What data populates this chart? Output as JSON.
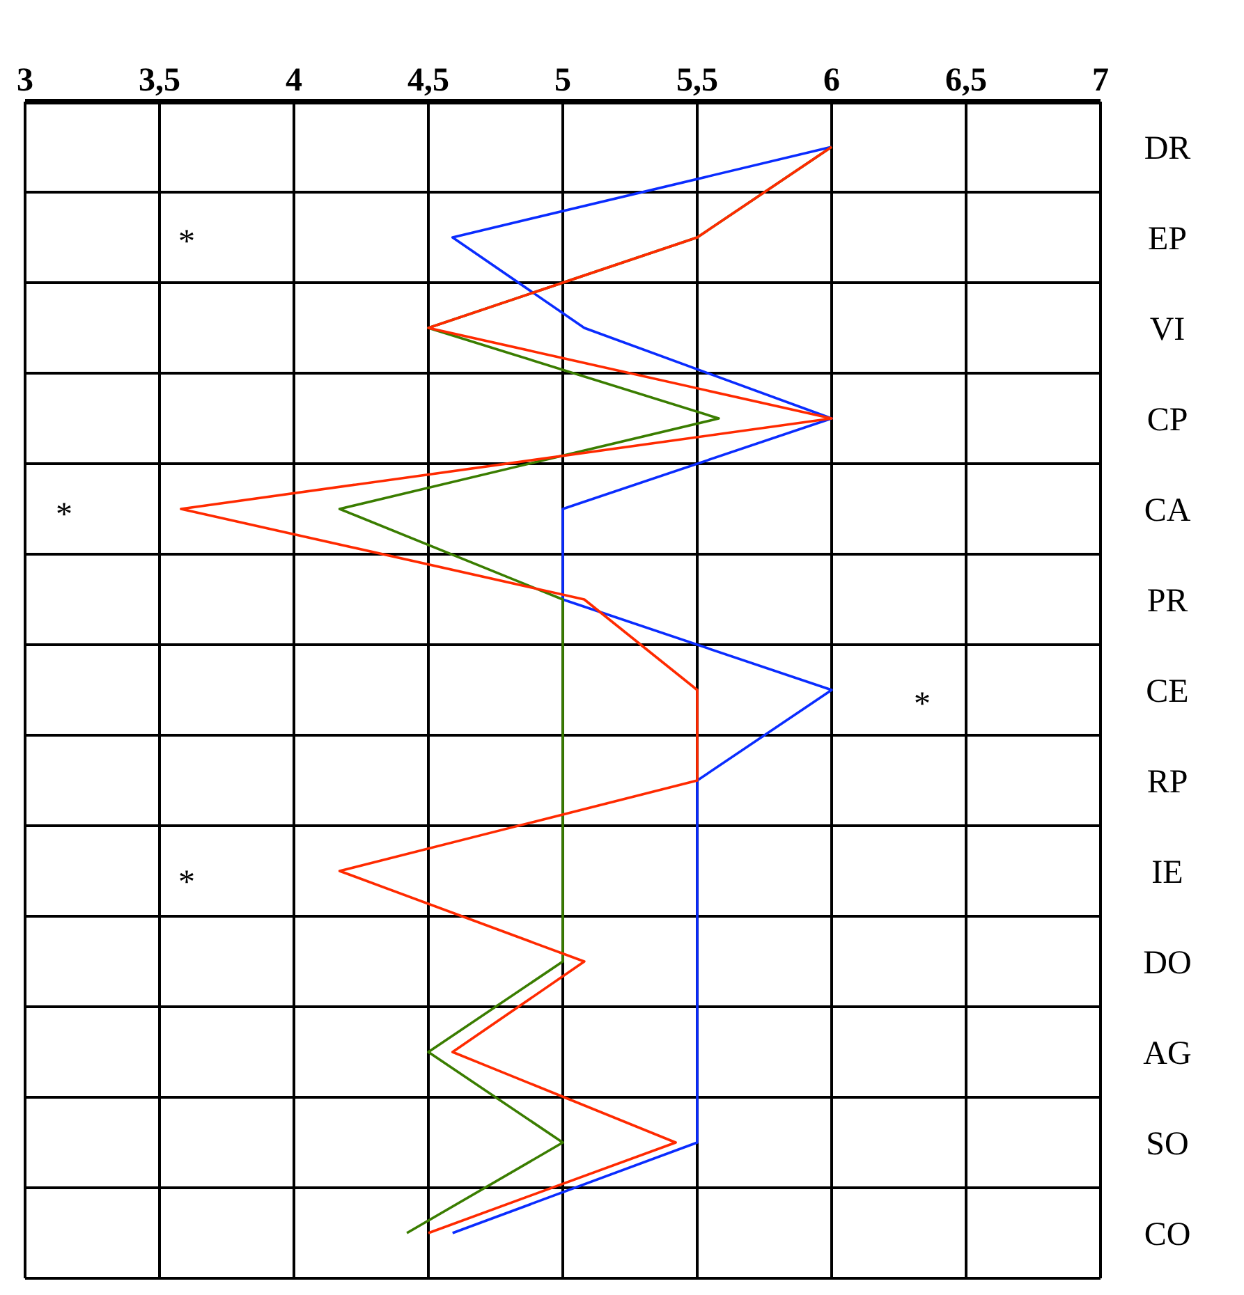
{
  "chart_data": {
    "type": "line",
    "categories": [
      "DR",
      "EP",
      "VI",
      "CP",
      "CA",
      "PR",
      "CE",
      "RP",
      "IE",
      "DO",
      "AG",
      "SO",
      "CO"
    ],
    "series": [
      {
        "color": "#0a2cff",
        "values": [
          6.0,
          4.59,
          5.08,
          6.0,
          5.0,
          5.0,
          6.0,
          5.5,
          5.5,
          5.5,
          5.5,
          5.5,
          4.59
        ]
      },
      {
        "color": "#3a7d00",
        "values": [
          6.0,
          5.5,
          4.5,
          5.58,
          4.17,
          5.0,
          5.0,
          5.0,
          5.0,
          5.0,
          4.5,
          5.0,
          4.42
        ]
      },
      {
        "color": "#ff2a00",
        "values": [
          6.0,
          5.5,
          4.5,
          6.0,
          3.58,
          5.08,
          5.5,
          5.5,
          4.17,
          5.08,
          4.59,
          5.42,
          4.5
        ]
      }
    ],
    "orientation": "horizontal",
    "xlim": [
      3,
      7
    ],
    "xticks": [
      3,
      {
        "value": 3.5,
        "label": "3,5"
      },
      4,
      {
        "value": 4.5,
        "label": "4,5"
      },
      5,
      {
        "value": 5.5,
        "label": "5,5"
      },
      6,
      {
        "value": 6.5,
        "label": "6,5"
      },
      7
    ],
    "grid": true,
    "legend": false,
    "marker": "none",
    "line_style": "solid",
    "annotations": [
      "*",
      "*",
      "*",
      "*"
    ]
  }
}
